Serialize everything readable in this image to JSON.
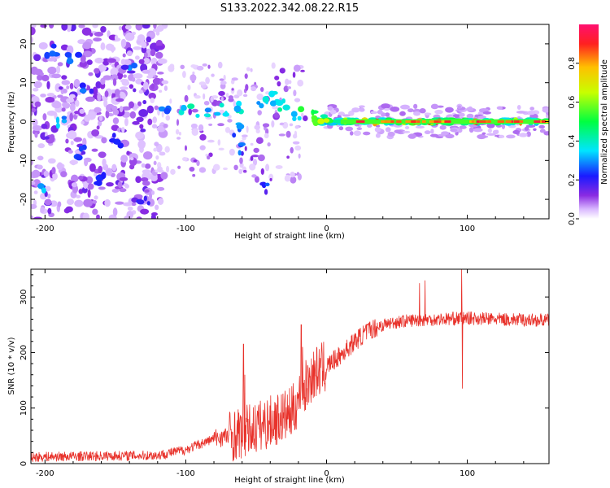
{
  "title": "S133.2022.342.08.22.R15",
  "colors": {
    "snr_line": "#e8322b",
    "axis": "#000000"
  },
  "chart_data": [
    {
      "type": "heatmap",
      "name": "spectrogram",
      "xlabel": "Height of straight line (km)",
      "ylabel": "Frequency (Hz)",
      "xlim": [
        -210,
        158
      ],
      "ylim": [
        -25,
        25
      ],
      "xticks": [
        -200,
        -100,
        0,
        100
      ],
      "yticks": [
        -20,
        -10,
        0,
        10,
        20
      ],
      "colorbar": {
        "label": "Normalized spectral amplitude",
        "range": [
          0,
          1
        ],
        "ticks": [
          0.0,
          0.2,
          0.4,
          0.6,
          0.8
        ],
        "tick_labels": [
          "0.0",
          "0.2",
          "0.4",
          "0.6",
          "0.8"
        ]
      },
      "carrier_frequency_hz": 0,
      "blobs": [
        {
          "x": -195,
          "y": 18,
          "a": 0.3
        },
        {
          "x": -180,
          "y": 16,
          "a": 0.25
        },
        {
          "x": -170,
          "y": 8,
          "a": 0.25
        },
        {
          "x": -190,
          "y": 0,
          "a": 0.3
        },
        {
          "x": -175,
          "y": -8,
          "a": 0.25
        },
        {
          "x": -160,
          "y": -15,
          "a": 0.25
        },
        {
          "x": -200,
          "y": -18,
          "a": 0.3
        },
        {
          "x": -140,
          "y": 14,
          "a": 0.25
        },
        {
          "x": -150,
          "y": -5,
          "a": 0.22
        },
        {
          "x": -130,
          "y": -20,
          "a": 0.22
        },
        {
          "x": -115,
          "y": 4,
          "a": 0.3
        },
        {
          "x": -100,
          "y": 3,
          "a": 0.4
        },
        {
          "x": -88,
          "y": 2,
          "a": 0.35
        },
        {
          "x": -75,
          "y": 3,
          "a": 0.35
        },
        {
          "x": -60,
          "y": 4,
          "a": 0.4
        },
        {
          "x": -65,
          "y": -2,
          "a": 0.28
        },
        {
          "x": -60,
          "y": -7,
          "a": 0.25
        },
        {
          "x": -45,
          "y": 5,
          "a": 0.35
        },
        {
          "x": -35,
          "y": 6,
          "a": 0.32
        },
        {
          "x": -30,
          "y": 4,
          "a": 0.38
        },
        {
          "x": -42,
          "y": -17,
          "a": 0.22
        },
        {
          "x": -20,
          "y": 2,
          "a": 0.45
        },
        {
          "x": -10,
          "y": 1.5,
          "a": 0.5
        },
        {
          "x": -5,
          "y": 0.5,
          "a": 0.55
        },
        {
          "x": 5,
          "y": 0,
          "a": 0.6
        },
        {
          "x": 30,
          "y": 0,
          "a": 0.75
        },
        {
          "x": 60,
          "y": 0,
          "a": 0.8
        },
        {
          "x": 78,
          "y": 0,
          "a": 0.9
        },
        {
          "x": 100,
          "y": 0,
          "a": 0.8
        },
        {
          "x": 130,
          "y": 0,
          "a": 0.75
        }
      ]
    },
    {
      "type": "line",
      "name": "snr",
      "xlabel": "Height of straight line (km)",
      "ylabel": "SNR (10 * v/v)",
      "xlim": [
        -210,
        158
      ],
      "ylim": [
        0,
        350
      ],
      "xticks": [
        -200,
        -100,
        0,
        100
      ],
      "yticks": [
        0,
        100,
        200,
        300
      ],
      "profile": {
        "x": [
          -210,
          -120,
          -100,
          -80,
          -60,
          -40,
          -25,
          -20,
          -10,
          0,
          10,
          20,
          30,
          40,
          50,
          60,
          80,
          100,
          120,
          158
        ],
        "y": [
          12,
          15,
          25,
          45,
          55,
          75,
          90,
          115,
          160,
          175,
          195,
          220,
          240,
          250,
          255,
          258,
          260,
          262,
          260,
          258
        ]
      },
      "spikes": [
        {
          "x": -59,
          "y": 215
        },
        {
          "x": -58,
          "y": 160
        },
        {
          "x": -18,
          "y": 250
        },
        {
          "x": -17,
          "y": 210
        },
        {
          "x": 66,
          "y": 325
        },
        {
          "x": 70,
          "y": 330
        },
        {
          "x": 96,
          "y": 350
        },
        {
          "x": 96.5,
          "y": 135
        }
      ]
    }
  ]
}
